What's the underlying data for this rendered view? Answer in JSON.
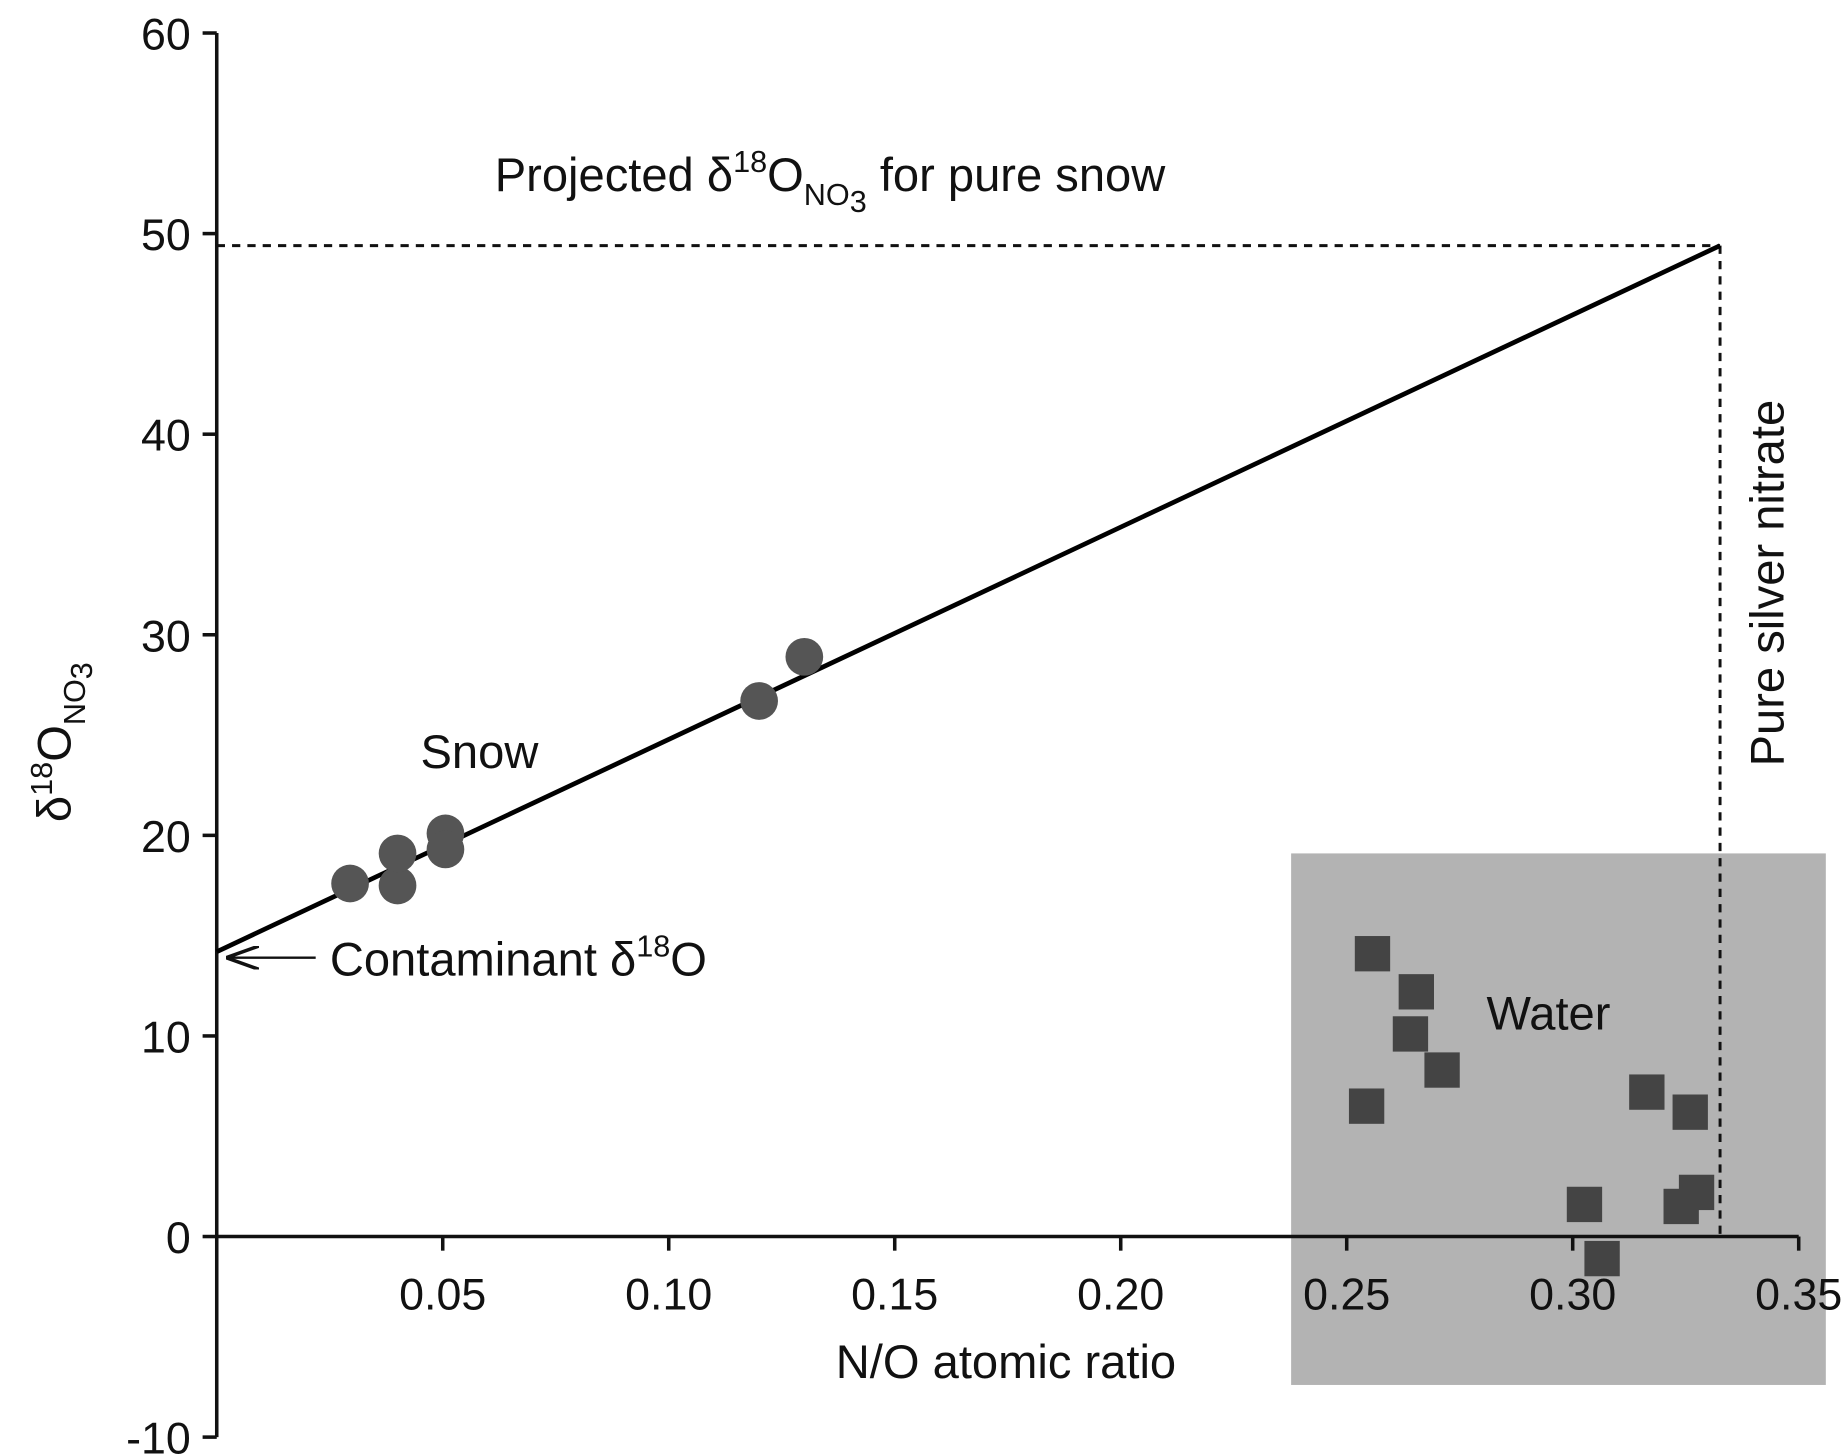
{
  "chart_data": {
    "type": "scatter",
    "x_label": "N/O atomic ratio",
    "y_label": [
      "δ",
      "18",
      "O",
      "NO",
      "3"
    ],
    "xlim": [
      0,
      0.35
    ],
    "ylim": [
      -10,
      60
    ],
    "xticks": [
      0.05,
      {
        "value": 0.1,
        "label": "0.10"
      },
      0.15,
      {
        "value": 0.2,
        "label": "0.20"
      },
      0.25,
      {
        "value": 0.3,
        "label": "0.30"
      },
      0.35
    ],
    "yticks": [
      -10,
      0,
      10,
      20,
      30,
      40,
      50,
      60
    ],
    "shaded_region": {
      "xlim": [
        0.2377,
        0.356
      ],
      "ylim": [
        -7.4,
        19.1
      ],
      "color": "#b3b3b3"
    },
    "series": [
      {
        "name": "Snow",
        "marker": "circle",
        "color": "#555555",
        "x": [
          0.0295,
          0.04,
          0.04,
          0.0506,
          0.0506,
          0.12,
          0.13
        ],
        "values": [
          17.6,
          17.5,
          19.1,
          20.1,
          19.3,
          26.7,
          28.9
        ]
      },
      {
        "name": "Water",
        "marker": "square",
        "color": "#444444",
        "x": [
          0.2557,
          0.2654,
          0.2641,
          0.2711,
          0.2544,
          0.3164,
          0.326,
          0.3026,
          0.3065,
          0.324,
          0.3274
        ],
        "values": [
          14.1,
          12.2,
          10.1,
          8.3,
          6.5,
          7.2,
          6.2,
          1.6,
          -1.1,
          1.5,
          2.2
        ]
      }
    ],
    "fit_line": {
      "x": [
        0,
        0.3326
      ],
      "values": [
        14.2,
        49.4
      ],
      "color": "#000000"
    },
    "annotations": {
      "projected": [
        "Projected δ",
        "18",
        "O",
        "NO",
        "3",
        " for pure snow"
      ],
      "contaminant": [
        "Contaminant δ",
        "18",
        "O"
      ],
      "silver": "Pure silver nitrate"
    }
  }
}
